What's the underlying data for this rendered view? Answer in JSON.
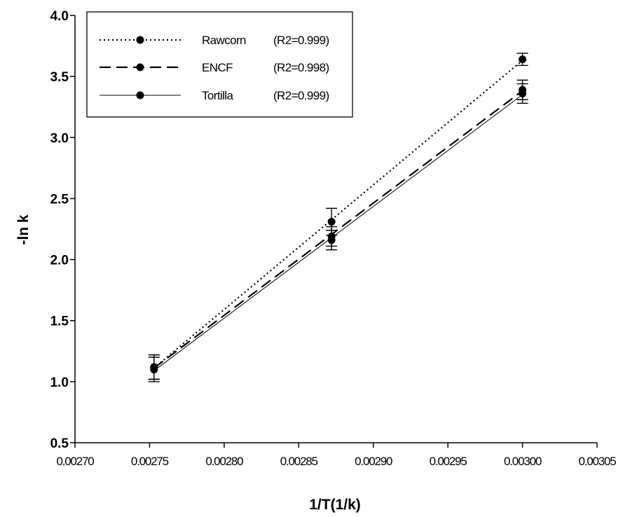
{
  "chart_data": {
    "type": "scatter",
    "xlabel": "1/T(1/k)",
    "ylabel": "-ln k",
    "xlim": [
      0.0027,
      0.00305
    ],
    "ylim": [
      0.5,
      4.0
    ],
    "xticks": [
      "0.00270",
      "0.00275",
      "0.00280",
      "0.00285",
      "0.00290",
      "0.00295",
      "0.00300",
      "0.00305"
    ],
    "yticks": [
      "0.5",
      "1.0",
      "1.5",
      "2.0",
      "2.5",
      "3.0",
      "3.5",
      "4.0"
    ],
    "legend_position": "top-left",
    "grid": false,
    "series": [
      {
        "name": "Rawcorn",
        "r2": "(R2=0.999)",
        "line_style": "dotted",
        "x": [
          0.002753,
          0.002872,
          0.003
        ],
        "y": [
          1.12,
          2.31,
          3.64
        ],
        "error": [
          0.1,
          0.11,
          0.05
        ]
      },
      {
        "name": "ENCF",
        "r2": "(R2=0.998)",
        "line_style": "dashed",
        "x": [
          0.002753,
          0.002872,
          0.003
        ],
        "y": [
          1.12,
          2.19,
          3.39
        ],
        "error": [
          0.1,
          0.08,
          0.08
        ]
      },
      {
        "name": "Tortilla",
        "r2": "(R2=0.999)",
        "line_style": "solid",
        "x": [
          0.002753,
          0.002872,
          0.003
        ],
        "y": [
          1.1,
          2.16,
          3.36
        ],
        "error": [
          0.1,
          0.08,
          0.08
        ]
      }
    ]
  }
}
